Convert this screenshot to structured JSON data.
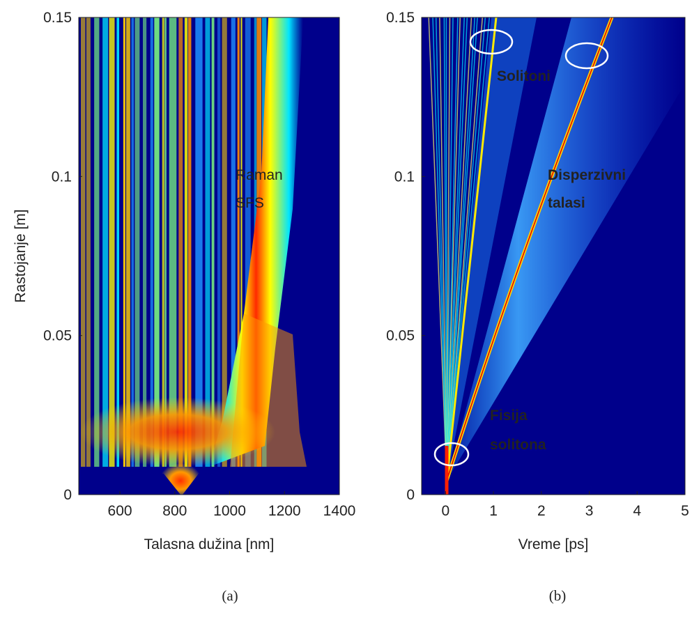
{
  "chart_data": [
    {
      "type": "heatmap",
      "x_label": "Talasna dužina [nm]",
      "y_label": "Rastojanje [m]",
      "xlim": [
        450,
        1400
      ],
      "xticks": [
        600,
        800,
        1000,
        1200,
        1400
      ],
      "ylim": [
        0,
        0.15
      ],
      "yticks": [
        0,
        0.05,
        0.1,
        0.15
      ],
      "annotations": [
        {
          "lines": [
            "Raman",
            "SFS"
          ]
        }
      ],
      "panel_label": "(a)"
    },
    {
      "type": "heatmap",
      "x_label": "Vreme [ps]",
      "xlim": [
        -0.5,
        5
      ],
      "xticks": [
        0,
        1,
        2,
        3,
        4,
        5
      ],
      "ylim": [
        0,
        0.15
      ],
      "yticks": [
        0,
        0.05,
        0.1,
        0.15
      ],
      "annotations": [
        {
          "lines": [
            "Solitoni"
          ]
        },
        {
          "lines": [
            "Disperzivni",
            "talasi"
          ]
        },
        {
          "lines": [
            "Fisija",
            "solitona"
          ]
        }
      ],
      "panel_label": "(b)"
    }
  ]
}
